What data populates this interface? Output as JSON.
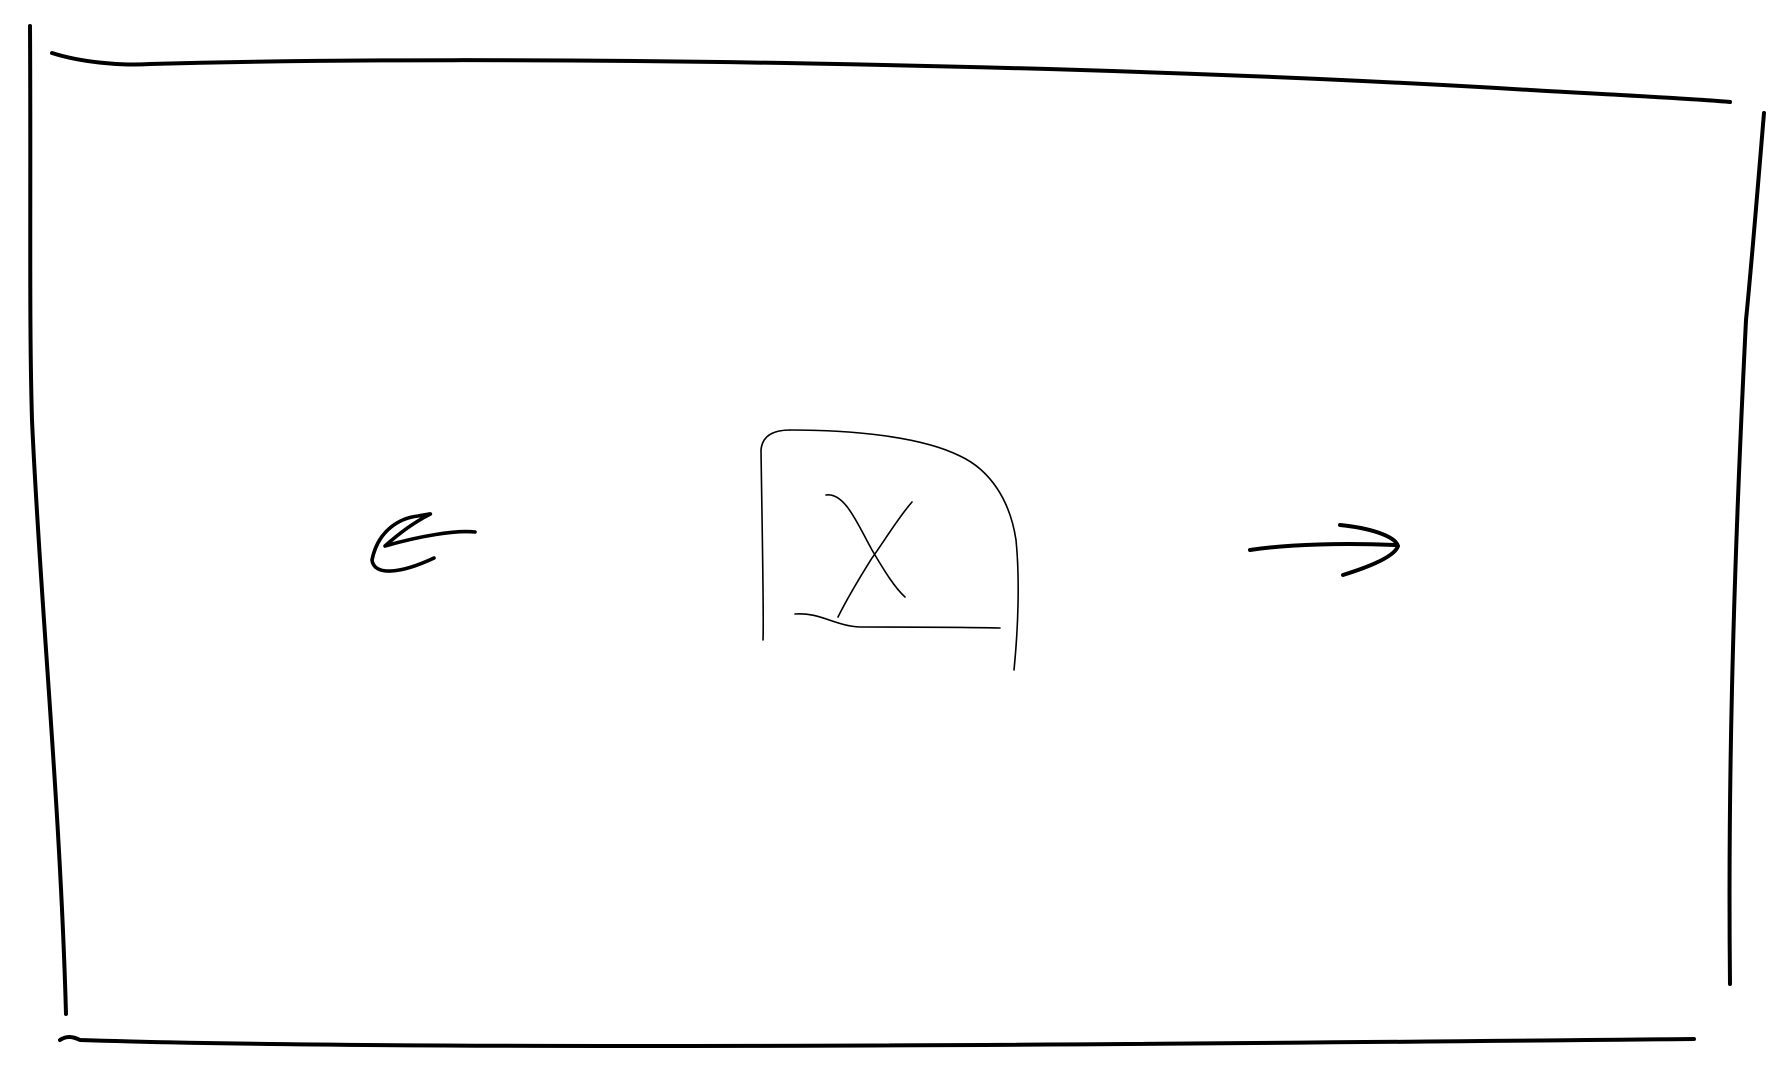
{
  "colors": {
    "background": "#ffffff",
    "ink": "#000000"
  },
  "frame": {
    "description_icon": "rectangle-frame"
  },
  "controls": {
    "back_icon": "arrow-left-icon",
    "close_icon": "close-x-icon",
    "forward_icon": "arrow-right-icon"
  }
}
